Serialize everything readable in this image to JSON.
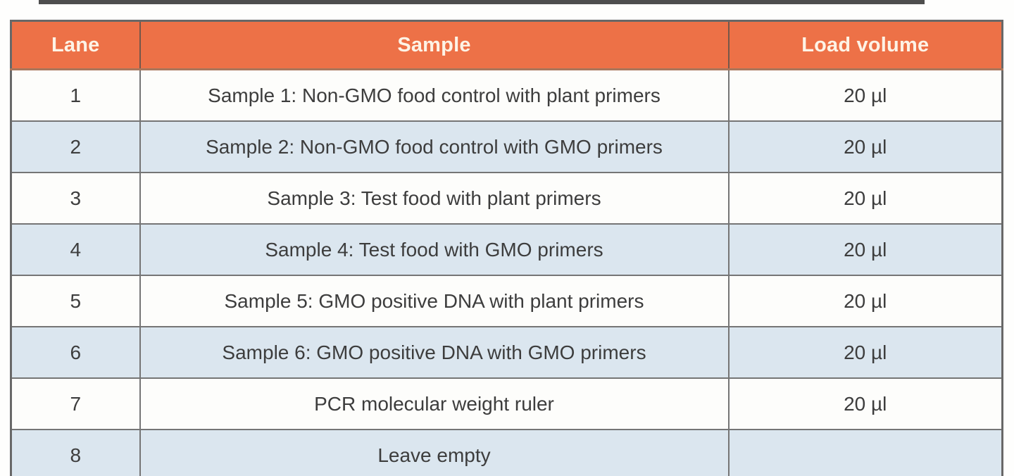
{
  "page": {
    "background_color": "#fefefd",
    "top_artifact_color": "#2f2f2f"
  },
  "table": {
    "header_bg_color": "#ed7147",
    "header_text_color": "#fdf3e6",
    "alt_row_color": "#dbe6ef",
    "row_color": "#fdfdfb",
    "border_color": "#757575",
    "body_text_color": "#3d3d3d",
    "columns": [
      {
        "label": "Lane"
      },
      {
        "label": "Sample"
      },
      {
        "label": "Load volume"
      }
    ],
    "rows": [
      {
        "lane": "1",
        "sample": "Sample 1: Non-GMO food control with plant primers",
        "load_volume": "20 µl"
      },
      {
        "lane": "2",
        "sample": "Sample 2: Non-GMO food control with GMO primers",
        "load_volume": "20 µl"
      },
      {
        "lane": "3",
        "sample": "Sample 3: Test food with plant primers",
        "load_volume": "20 µl"
      },
      {
        "lane": "4",
        "sample": "Sample 4: Test food with GMO primers",
        "load_volume": "20 µl"
      },
      {
        "lane": "5",
        "sample": "Sample 5: GMO positive DNA with plant primers",
        "load_volume": "20 µl"
      },
      {
        "lane": "6",
        "sample": "Sample 6: GMO positive DNA with GMO primers",
        "load_volume": "20 µl"
      },
      {
        "lane": "7",
        "sample": "PCR molecular weight ruler",
        "load_volume": "20 µl"
      },
      {
        "lane": "8",
        "sample": "Leave empty",
        "load_volume": ""
      }
    ]
  }
}
